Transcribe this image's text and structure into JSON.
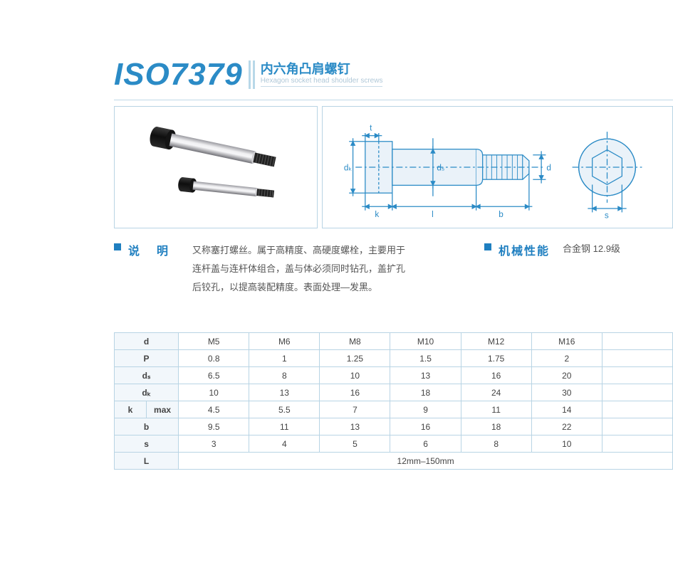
{
  "header": {
    "standard_code": "ISO7379",
    "title_cn": "内六角凸肩螺钉",
    "title_en": "Hexagon socket head shoulder screws",
    "title_color": "#2b8bc6",
    "rule_color": "#c0d8e8"
  },
  "description": {
    "label": "说明",
    "text_lines": [
      "又称塞打螺丝。属于高精度、高硬度螺栓，主要用于",
      "连杆盖与连杆体组合，盖与体必须同时钻孔，盖扩孔",
      "后铰孔，以提高装配精度。表面处理—发黑。"
    ]
  },
  "mechanical": {
    "label": "机械性能",
    "value": "合金钢 12.9级"
  },
  "diagram": {
    "labels": {
      "t": "t",
      "dk": "dₖ",
      "ds": "dₛ",
      "d": "d",
      "k": "k",
      "l": "l",
      "b": "b",
      "s": "s"
    },
    "line_color": "#2b8bc6",
    "dim_color": "#2b8bc6",
    "part_fill": "#dceaf4"
  },
  "photo": {
    "head_color": "#1a1a1a",
    "shaft_light": "#e8e8ea",
    "shaft_dark": "#8a8a8e",
    "thread_color": "#2a2a2a"
  },
  "table": {
    "header_bg": "#f2f7fb",
    "border_color": "#b8d4e4",
    "columns": [
      "M5",
      "M6",
      "M8",
      "M10",
      "M12",
      "M16"
    ],
    "rows": [
      {
        "label": "d",
        "sub": "",
        "values": [
          "M5",
          "M6",
          "M8",
          "M10",
          "M12",
          "M16"
        ]
      },
      {
        "label": "P",
        "sub": "",
        "values": [
          "0.8",
          "1",
          "1.25",
          "1.5",
          "1.75",
          "2"
        ]
      },
      {
        "label": "dₛ",
        "sub": "",
        "values": [
          "6.5",
          "8",
          "10",
          "13",
          "16",
          "20"
        ]
      },
      {
        "label": "dₖ",
        "sub": "",
        "values": [
          "10",
          "13",
          "16",
          "18",
          "24",
          "30"
        ]
      },
      {
        "label": "k",
        "sub": "max",
        "values": [
          "4.5",
          "5.5",
          "7",
          "9",
          "11",
          "14"
        ]
      },
      {
        "label": "b",
        "sub": "",
        "values": [
          "9.5",
          "11",
          "13",
          "16",
          "18",
          "22"
        ]
      },
      {
        "label": "s",
        "sub": "",
        "values": [
          "3",
          "4",
          "5",
          "6",
          "8",
          "10"
        ]
      }
    ],
    "length_row": {
      "label": "L",
      "value": "12mm–150mm"
    }
  }
}
